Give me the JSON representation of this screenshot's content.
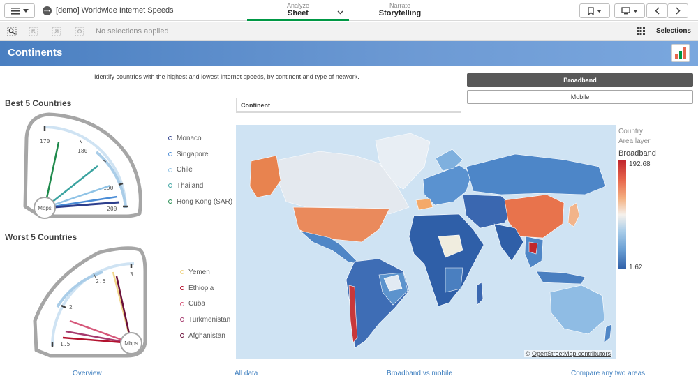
{
  "app": {
    "title": "[demo] Worldwide Internet Speeds",
    "nav": [
      {
        "label": "Analyze",
        "value": "Sheet"
      },
      {
        "label": "Narrate",
        "value": "Storytelling"
      }
    ]
  },
  "selections": {
    "status": "No selections applied",
    "button": "Selections"
  },
  "sheet": {
    "title": "Continents",
    "description": "Identify countries with the highest and lowest internet speeds, by continent and type of network."
  },
  "buttons": {
    "broadband": "Broadband",
    "mobile": "Mobile"
  },
  "filter": {
    "continent_label": "Continent"
  },
  "best": {
    "title": "Best 5 Countries",
    "unit": "Mbps",
    "ticks": [
      "170",
      "180",
      "190",
      "200"
    ],
    "countries": [
      {
        "name": "Monaco",
        "color": "#2c3e8c"
      },
      {
        "name": "Singapore",
        "color": "#4a8cd6"
      },
      {
        "name": "Chile",
        "color": "#8fc3e6"
      },
      {
        "name": "Thailand",
        "color": "#3ba3a0"
      },
      {
        "name": "Hong Kong (SAR)",
        "color": "#1f8a4c"
      }
    ]
  },
  "worst": {
    "title": "Worst 5 Countries",
    "unit": "Mbps",
    "ticks": [
      "1.5",
      "2",
      "2.5",
      "3"
    ],
    "countries": [
      {
        "name": "Yemen",
        "color": "#f0d68a"
      },
      {
        "name": "Ethiopia",
        "color": "#b3122e"
      },
      {
        "name": "Cuba",
        "color": "#d6577a"
      },
      {
        "name": "Turkmenistan",
        "color": "#a63a6e"
      },
      {
        "name": "Afghanistan",
        "color": "#6b0f3a"
      }
    ]
  },
  "map": {
    "legend_title": "Country",
    "legend_layer": "Area layer",
    "measure": "Broadband",
    "max": "192.68",
    "min": "1.62",
    "credit": "OpenStreetMap contributors"
  },
  "footer": {
    "links": [
      "Overview",
      "All data",
      "Broadband vs mobile",
      "Compare any two areas"
    ]
  }
}
